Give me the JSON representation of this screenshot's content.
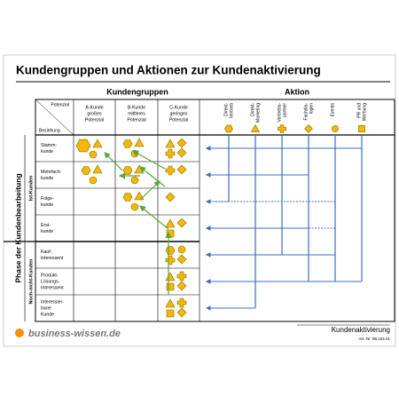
{
  "header": {
    "title": "Kundengruppen und Aktionen zur Kundenaktivierung"
  },
  "table": {
    "group_heading": "Kundengruppen",
    "action_heading": "Aktion",
    "corner_top": "Potenzial",
    "corner_bottom": "Beziehung",
    "groups": [
      [
        "A-Kunde",
        "großes",
        "Potenzial"
      ],
      [
        "B-Kunde",
        "mittleres",
        "Potenzial"
      ],
      [
        "C-Kunde",
        "geringes",
        "Potenzial"
      ]
    ],
    "actions": [
      [
        "Direkt-",
        "Vertrieb"
      ],
      [
        "Direkt-",
        "Marketing"
      ],
      [
        "Vertriebs-",
        "partner"
      ],
      [
        "Fachdia-",
        "logen"
      ],
      [
        "Events"
      ],
      [
        "PR und",
        "Werbung"
      ]
    ],
    "phase_label": "Phase der Kundenbearbeitung",
    "sections": [
      "Ist-Kunden",
      "Noch-nicht-Kunden"
    ],
    "rows": [
      [
        "Stamm-",
        "kunde"
      ],
      [
        "Mehrfach-",
        "kunde"
      ],
      [
        "Folge-",
        "kunde"
      ],
      [
        "Erst-",
        "kunde"
      ],
      [
        "Kauf-",
        "interessent"
      ],
      [
        "Produkt-",
        "Lösungs-",
        "Interessent"
      ],
      [
        "Interessier-",
        "barer",
        "Kunde"
      ]
    ]
  },
  "footer": {
    "brand": "business-wissen.de",
    "product": "Kundenaktivierung",
    "article": "Art.-Nr. 99.104.01"
  }
}
